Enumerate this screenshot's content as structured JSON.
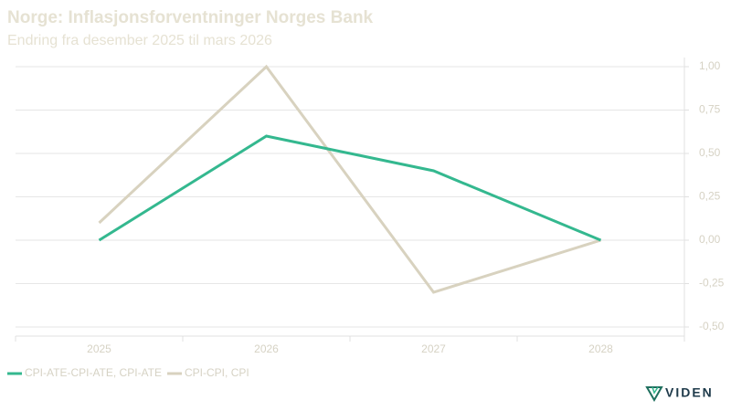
{
  "chart_data": {
    "type": "line",
    "title": "Norge: Inflasjonsforventninger Norges Bank",
    "subtitle": "Endring fra desember 2025 til mars 2026",
    "categories": [
      "2025",
      "2026",
      "2027",
      "2028"
    ],
    "series": [
      {
        "name": "CPI-ATE-CPI-ATE, CPI-ATE",
        "color": "#34b88f",
        "values": [
          0,
          0.6,
          0.4,
          0
        ]
      },
      {
        "name": "CPI-CPI, CPI",
        "color": "#d8d2bf",
        "values": [
          0.1,
          1.0,
          -0.3,
          0
        ]
      }
    ],
    "ylim": [
      -0.5,
      1.0
    ],
    "yticks": [
      {
        "value": 1.0,
        "label": "1,00"
      },
      {
        "value": 0.75,
        "label": "0,75"
      },
      {
        "value": 0.5,
        "label": "0,50"
      },
      {
        "value": 0.25,
        "label": "0,25"
      },
      {
        "value": 0,
        "label": "0,00"
      },
      {
        "value": -0.25,
        "label": "-0,25"
      },
      {
        "value": -0.5,
        "label": "-0,50"
      }
    ],
    "grid": true,
    "legend": "bottom-left"
  },
  "logo": "VIDEN"
}
